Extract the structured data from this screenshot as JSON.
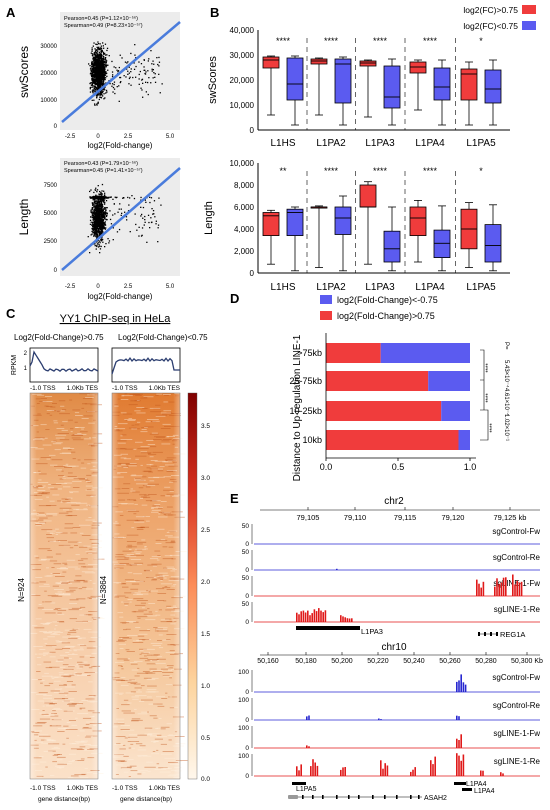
{
  "panels": {
    "A": "A",
    "B": "B",
    "C": "C",
    "D": "D",
    "E": "E"
  },
  "panelA": {
    "top": {
      "ylabel": "swScores",
      "xlabel": "log2(Fold-change)",
      "stat1": "Pearson=0.45 (P=1.12×10⁻⁵⁶)",
      "stat2": "Spearman=0.49 (P=8.23×10⁻⁵⁷)",
      "yticks": [
        "30000",
        "20000",
        "10000",
        "0"
      ],
      "xticks": [
        "-2.5",
        "0",
        "2.5",
        "5.0"
      ]
    },
    "bottom": {
      "ylabel": "Length",
      "xlabel": "log2(Fold-change)",
      "stat1": "Pearson=0.43 (P=1.79×10⁻⁵⁶)",
      "stat2": "Spearman=0.45 (P=1.41×10⁻⁵⁷)",
      "yticks": [
        "7500",
        "5000",
        "2500",
        "0"
      ],
      "xticks": [
        "-2.5",
        "0",
        "2.5",
        "5.0"
      ]
    }
  },
  "panelB": {
    "legend": [
      {
        "label": "log2(FC)>0.75",
        "color": "#f03c3c"
      },
      {
        "label": "log2(FC)<0.75",
        "color": "#5b5bf0"
      }
    ],
    "top": {
      "ylabel": "swScores",
      "yticks": [
        "40,000",
        "30,000",
        "20,000",
        "10,000",
        "0"
      ],
      "categories": [
        "L1HS",
        "L1PA2",
        "L1PA3",
        "L1PA4",
        "L1PA5"
      ],
      "sig": [
        "****",
        "****",
        "****",
        "****",
        "*"
      ]
    },
    "bottom": {
      "ylabel": "Length",
      "yticks": [
        "10,000",
        "8,000",
        "6,000",
        "4,000",
        "2,000",
        "0"
      ],
      "categories": [
        "L1HS",
        "L1PA2",
        "L1PA3",
        "L1PA4",
        "L1PA5"
      ],
      "sig": [
        "**",
        "****",
        "****",
        "****",
        "*"
      ]
    }
  },
  "panelC": {
    "title": "YY1 ChIP-seq in HeLa",
    "left_label": "Log2(Fold-Change)>0.75",
    "right_label": "Log2(Fold-Change)<0.75",
    "rpkm": "RPKM",
    "xticks": [
      "-1.0 TSS",
      "1.0Kb TES"
    ],
    "left_n": "N=924",
    "right_n": "N=3864",
    "xlabel": "gene distance(bp)",
    "scale": [
      "3.5",
      "3.0",
      "2.5",
      "2.0",
      "1.5",
      "1.0",
      "0.5",
      "0.0"
    ],
    "profile_yticks": [
      "2",
      "1"
    ]
  },
  "panelD": {
    "legend": [
      {
        "label": "log2(Fold-Change)<-0.75",
        "color": "#5b5bf0"
      },
      {
        "label": "log2(Fold-Change)>0.75",
        "color": "#f03c3c"
      }
    ],
    "ylabel": "Distance to Up-regulation LINE-1",
    "xticks": [
      "0.0",
      "0.5",
      "1.0"
    ],
    "pvalues": [
      "P=",
      "5.43×10⁻⁴",
      "4.61×10⁻⁴",
      "1.02×10⁻¹"
    ],
    "stars": [
      "****",
      "****",
      "****"
    ],
    "chart_data": {
      "type": "bar",
      "categories": [
        ">75kb",
        "25-75kb",
        "10-25kb",
        "10kb"
      ],
      "series": [
        {
          "name": "log2(Fold-Change)>0.75",
          "values": [
            0.38,
            0.71,
            0.8,
            0.92
          ]
        },
        {
          "name": "log2(Fold-Change)<-0.75",
          "values": [
            0.62,
            0.29,
            0.2,
            0.08
          ]
        }
      ],
      "xlim": [
        0,
        1
      ]
    }
  },
  "panelE": {
    "chr2": {
      "title": "chr2",
      "coords": [
        "79,105",
        "79,110",
        "79,115",
        "79,120",
        "79,125 kb"
      ],
      "tracks": [
        "sgControl-Fw",
        "sgControl-Re",
        "sgLINE-1-Fw",
        "sgLINE-1-Re"
      ],
      "scale": [
        "50",
        "0"
      ],
      "genes": [
        "L1PA3",
        "REG1A"
      ]
    },
    "chr10": {
      "title": "chr10",
      "coords": [
        "50,160",
        "50,180",
        "50,200",
        "50,220",
        "50,240",
        "50,260",
        "50,280",
        "50,300 Kb"
      ],
      "tracks": [
        "sgControl-Fw",
        "sgControl-Re",
        "sgLINE-1-Fw",
        "sgLINE-1-Re"
      ],
      "scale": [
        "100",
        "0"
      ],
      "genes": [
        "L1PA5",
        "ASAH2",
        "L1PA4",
        "L1PA4"
      ]
    }
  }
}
